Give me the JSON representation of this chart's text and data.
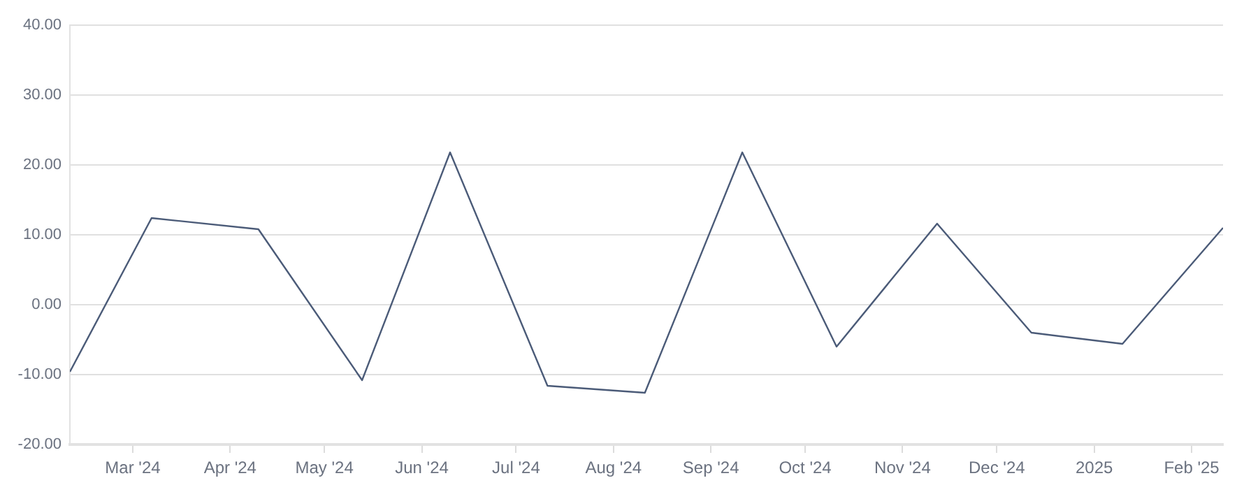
{
  "chart_data": {
    "type": "line",
    "x": [
      "2024-02-10",
      "2024-03-07",
      "2024-04-10",
      "2024-05-13",
      "2024-06-10",
      "2024-07-11",
      "2024-08-11",
      "2024-09-11",
      "2024-10-11",
      "2024-11-12",
      "2024-12-12",
      "2025-01-10",
      "2025-02-11"
    ],
    "series": [
      {
        "color": "#4b5b78",
        "values": [
          -9.6,
          12.4,
          10.8,
          -10.8,
          21.8,
          -11.6,
          -12.6,
          21.8,
          -6.0,
          11.6,
          -4.0,
          -5.6,
          11.0
        ]
      }
    ],
    "xlim": [
      "2024-02-10",
      "2025-02-11"
    ],
    "xticks": [
      {
        "value": "2024-03-01",
        "label": "Mar '24"
      },
      {
        "value": "2024-04-01",
        "label": "Apr '24"
      },
      {
        "value": "2024-05-01",
        "label": "May '24"
      },
      {
        "value": "2024-06-01",
        "label": "Jun '24"
      },
      {
        "value": "2024-07-01",
        "label": "Jul '24"
      },
      {
        "value": "2024-08-01",
        "label": "Aug '24"
      },
      {
        "value": "2024-09-01",
        "label": "Sep '24"
      },
      {
        "value": "2024-10-01",
        "label": "Oct '24"
      },
      {
        "value": "2024-11-01",
        "label": "Nov '24"
      },
      {
        "value": "2024-12-01",
        "label": "Dec '24"
      },
      {
        "value": "2025-01-01",
        "label": "2025"
      },
      {
        "value": "2025-02-01",
        "label": "Feb '25"
      }
    ],
    "ylim": [
      -20,
      40
    ],
    "yticks": [
      {
        "value": -20,
        "label": "-20.00"
      },
      {
        "value": -10,
        "label": "-10.00"
      },
      {
        "value": 0,
        "label": "0.00"
      },
      {
        "value": 10,
        "label": "10.00"
      },
      {
        "value": 20,
        "label": "20.00"
      },
      {
        "value": 30,
        "label": "30.00"
      },
      {
        "value": 40,
        "label": "40.00"
      }
    ],
    "grid": "y",
    "marker": "none",
    "line_style": "solid",
    "legend": false
  }
}
